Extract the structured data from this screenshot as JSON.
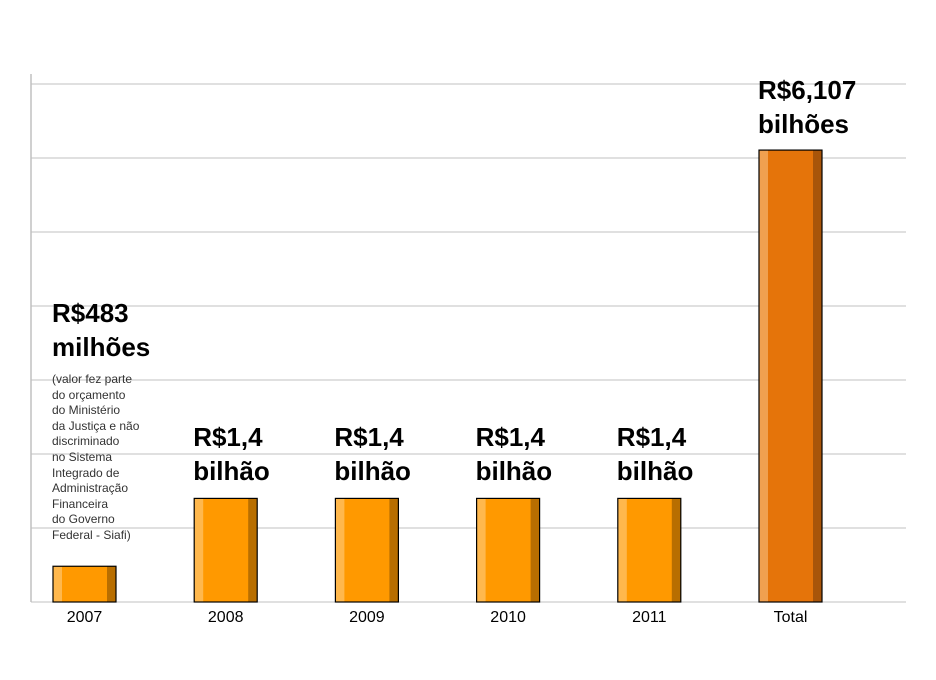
{
  "chart_data": {
    "type": "bar",
    "title": "",
    "xlabel": "",
    "ylabel": "",
    "categories": [
      "2007",
      "2008",
      "2009",
      "2010",
      "2011",
      "Total"
    ],
    "values": [
      0.483,
      1.4,
      1.4,
      1.4,
      1.4,
      6.107
    ],
    "units": "R$ bilhões",
    "ylim": [
      0,
      7.0
    ],
    "grid": true,
    "legend": "none",
    "data_labels": [
      {
        "line1": "R$483",
        "line2": "milhões"
      },
      {
        "line1": "R$1,4",
        "line2": "bilhão"
      },
      {
        "line1": "R$1,4",
        "line2": "bilhão"
      },
      {
        "line1": "R$1,4",
        "line2": "bilhão"
      },
      {
        "line1": "R$1,4",
        "line2": "bilhão"
      },
      {
        "line1": "R$6,107",
        "line2": "bilhões"
      }
    ],
    "annotation": [
      "(valor fez parte",
      "do orçamento",
      "do Ministério",
      "da Justiça e não",
      "discriminado",
      "no Sistema",
      "Integrado de",
      "Administração",
      "Financeira",
      "do Governo",
      "Federal - Siafi)"
    ],
    "colors": {
      "bar": "#ff9900",
      "bar_light": "#ffb84d",
      "bar_dark": "#b86e00",
      "total_bar": "#e5740a",
      "total_light": "#f0a050",
      "total_dark": "#a8550a",
      "grid": "#c0c0c0"
    }
  }
}
